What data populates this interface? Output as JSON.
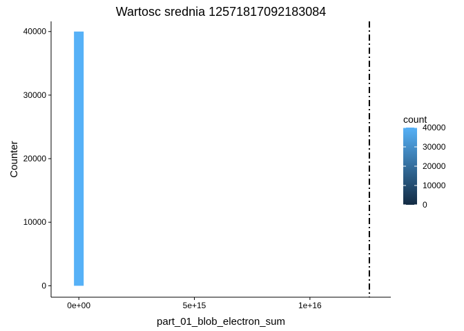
{
  "chart_data": {
    "type": "bar",
    "title": "Wartosc srednia 12571817092183084",
    "xlabel": "part_01_blob_electron_sum",
    "ylabel": "Counter",
    "xlim": [
      -1200000000000000.0,
      1.35e+16
    ],
    "ylim": [
      -1800,
      41600
    ],
    "x_ticks": [
      {
        "value": 0,
        "label": "0e+00"
      },
      {
        "value": 5000000000000000.0,
        "label": "5e+15"
      },
      {
        "value": 1e+16,
        "label": "1e+16"
      }
    ],
    "y_ticks": [
      {
        "value": 0,
        "label": "0"
      },
      {
        "value": 10000,
        "label": "10000"
      },
      {
        "value": 20000,
        "label": "20000"
      },
      {
        "value": 30000,
        "label": "30000"
      },
      {
        "value": 40000,
        "label": "40000"
      }
    ],
    "bins": [
      {
        "x0": -210000000000000.0,
        "x1": 210000000000000.0,
        "count": 40000
      }
    ],
    "mean_line": {
      "x": 12571817092183084,
      "style": "dashdot"
    },
    "grid": false,
    "legend": {
      "title": "count",
      "placement": "right",
      "low_color": "#132B43",
      "high_color": "#56B1F7",
      "range": [
        0,
        40000
      ],
      "ticks": [
        {
          "value": 0,
          "label": "0"
        },
        {
          "value": 10000,
          "label": "10000"
        },
        {
          "value": 20000,
          "label": "20000"
        },
        {
          "value": 30000,
          "label": "30000"
        },
        {
          "value": 40000,
          "label": "40000"
        }
      ]
    }
  }
}
